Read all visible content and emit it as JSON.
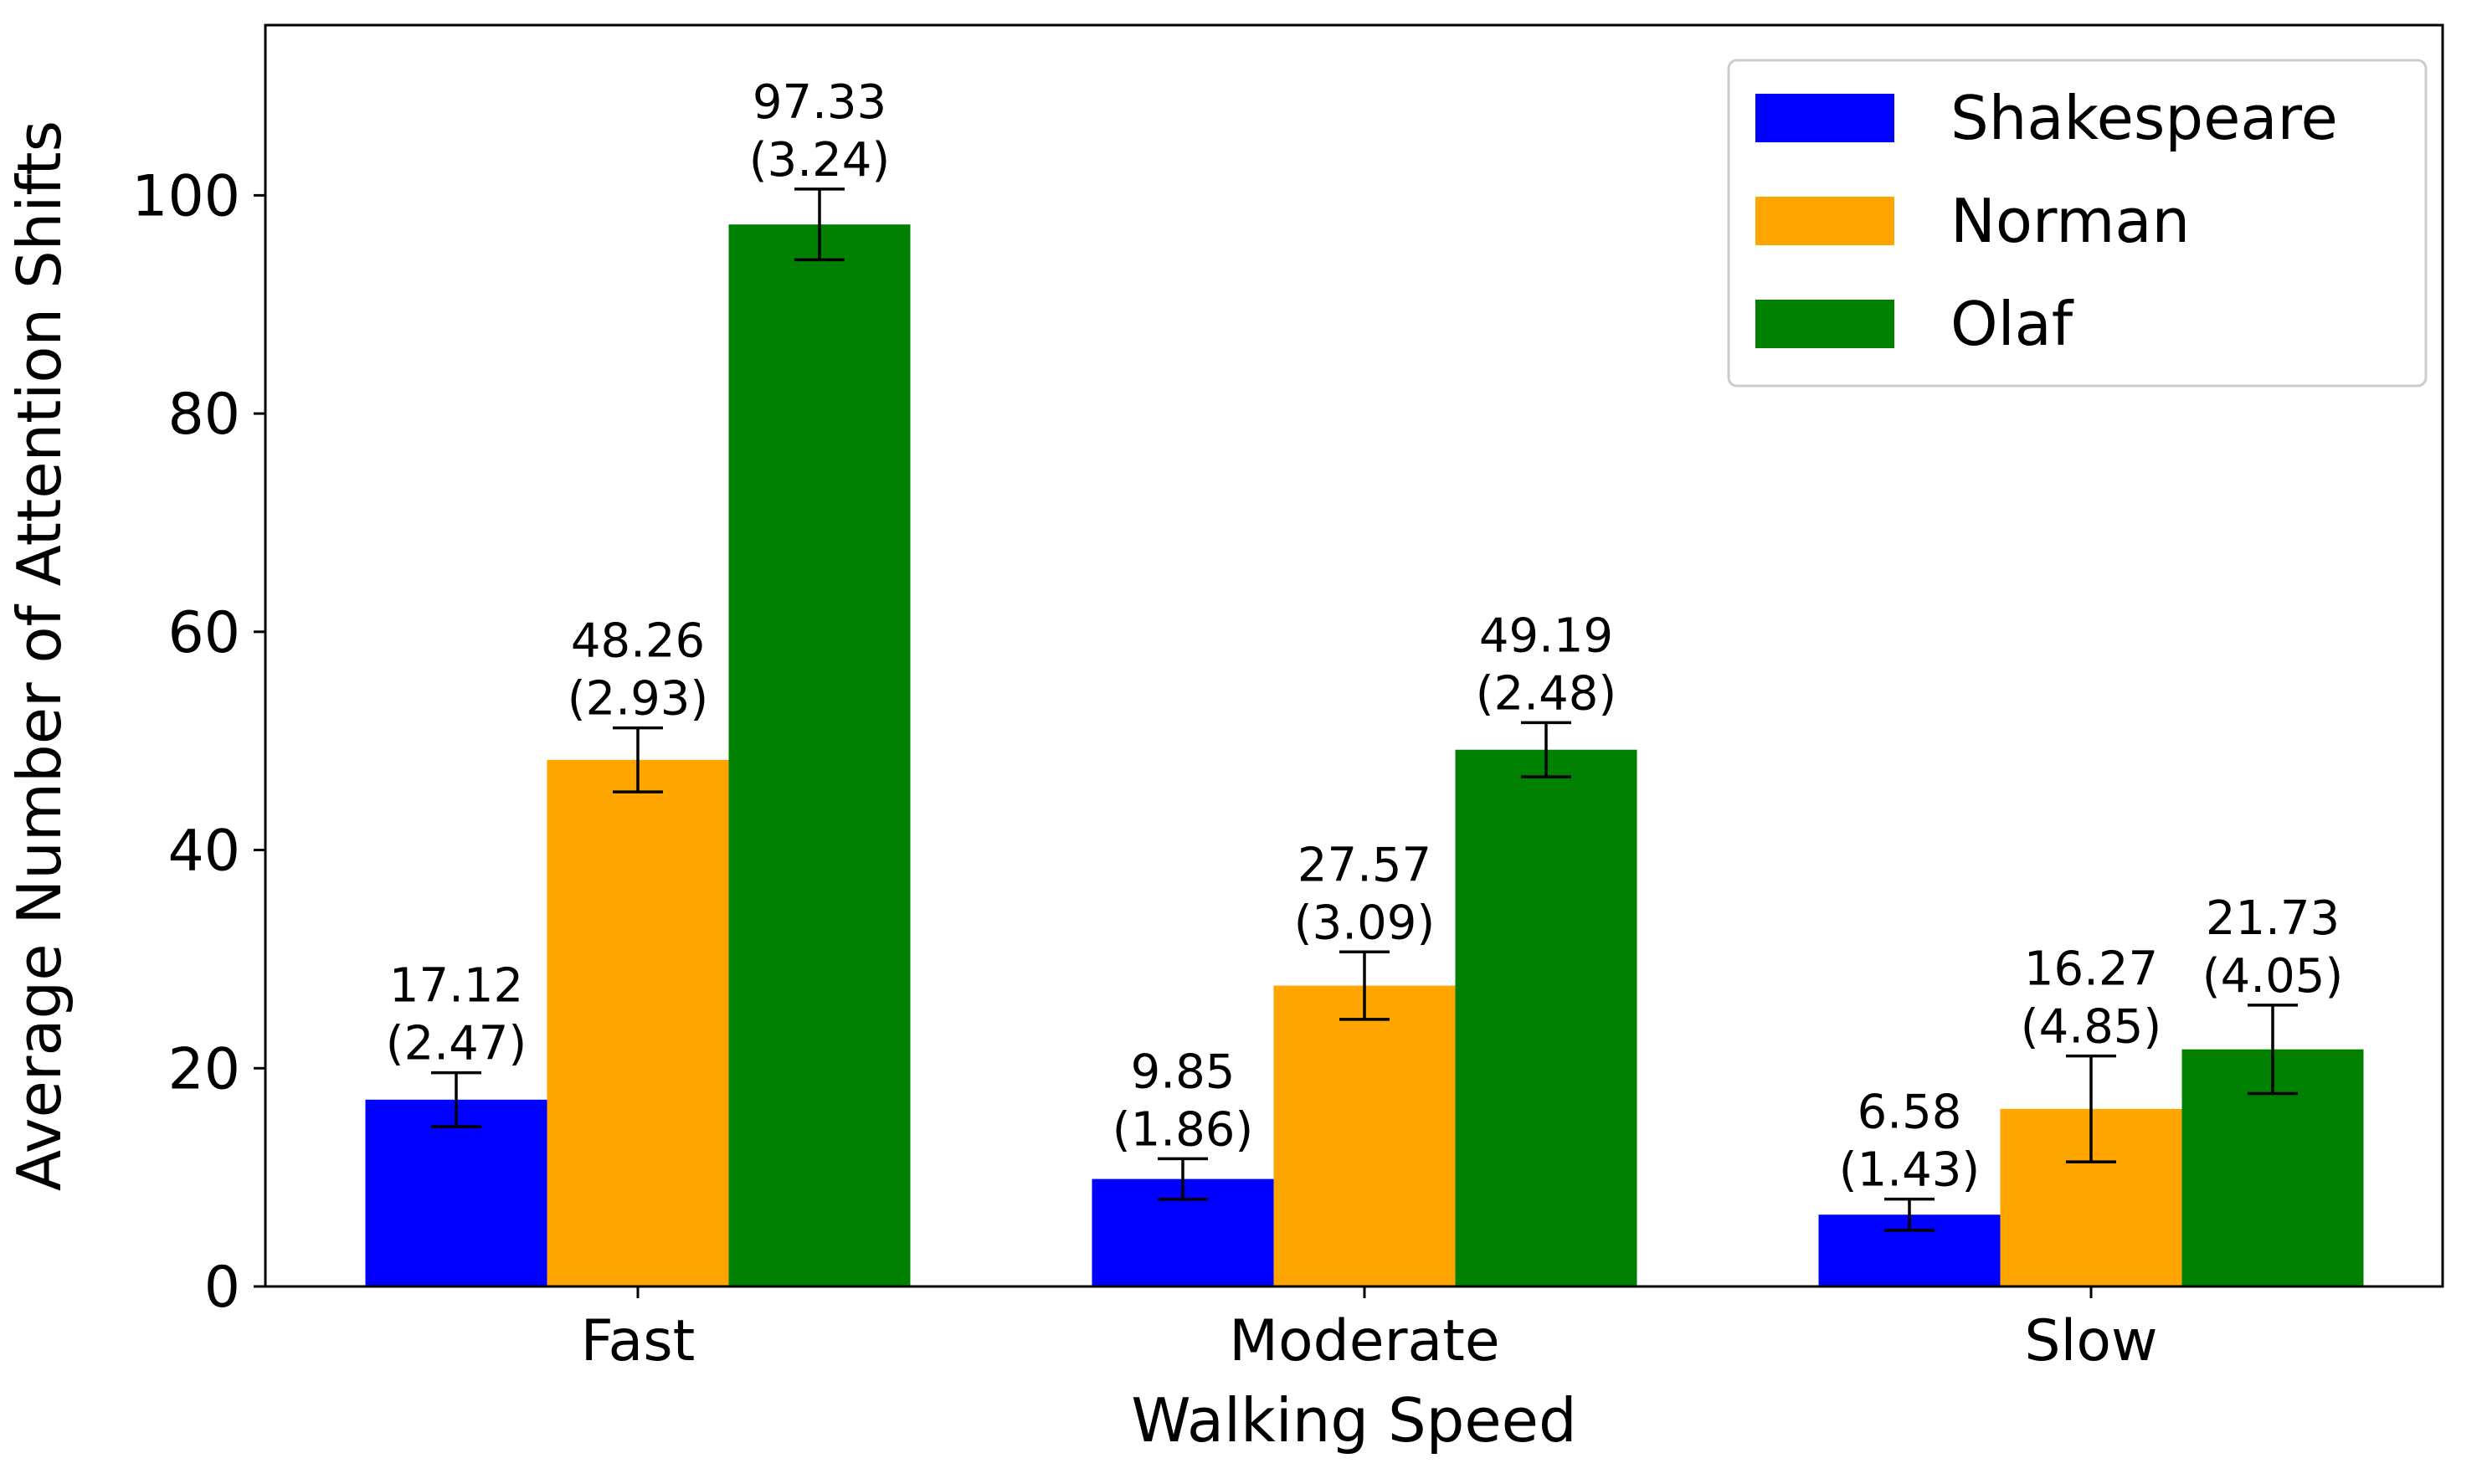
{
  "chart_data": {
    "type": "bar",
    "xlabel": "Walking Speed",
    "ylabel": "Average Number of Attention Shifts",
    "categories": [
      "Fast",
      "Moderate",
      "Slow"
    ],
    "series": [
      {
        "name": "Shakespeare",
        "color": "#0000ff",
        "values": [
          17.12,
          9.85,
          6.58
        ],
        "errors": [
          2.47,
          1.86,
          1.43
        ],
        "value_labels": [
          "17.12",
          "9.85",
          "6.58"
        ],
        "error_labels": [
          "(2.47)",
          "(1.86)",
          "(1.43)"
        ]
      },
      {
        "name": "Norman",
        "color": "#ffa500",
        "values": [
          48.26,
          27.57,
          16.27
        ],
        "errors": [
          2.93,
          3.09,
          4.85
        ],
        "value_labels": [
          "48.26",
          "27.57",
          "16.27"
        ],
        "error_labels": [
          "(2.93)",
          "(3.09)",
          "(4.85)"
        ]
      },
      {
        "name": "Olaf",
        "color": "#008000",
        "values": [
          97.33,
          49.19,
          21.73
        ],
        "errors": [
          3.24,
          2.48,
          4.05
        ],
        "value_labels": [
          "97.33",
          "49.19",
          "21.73"
        ],
        "error_labels": [
          "(3.24)",
          "(2.48)",
          "(4.05)"
        ]
      }
    ],
    "ylim": [
      0,
      115.6
    ],
    "yticks": [
      0,
      20,
      40,
      60,
      80,
      100
    ],
    "ytick_labels": [
      "0",
      "20",
      "40",
      "60",
      "80",
      "100"
    ],
    "grid": false,
    "legend_position": "top-right"
  }
}
